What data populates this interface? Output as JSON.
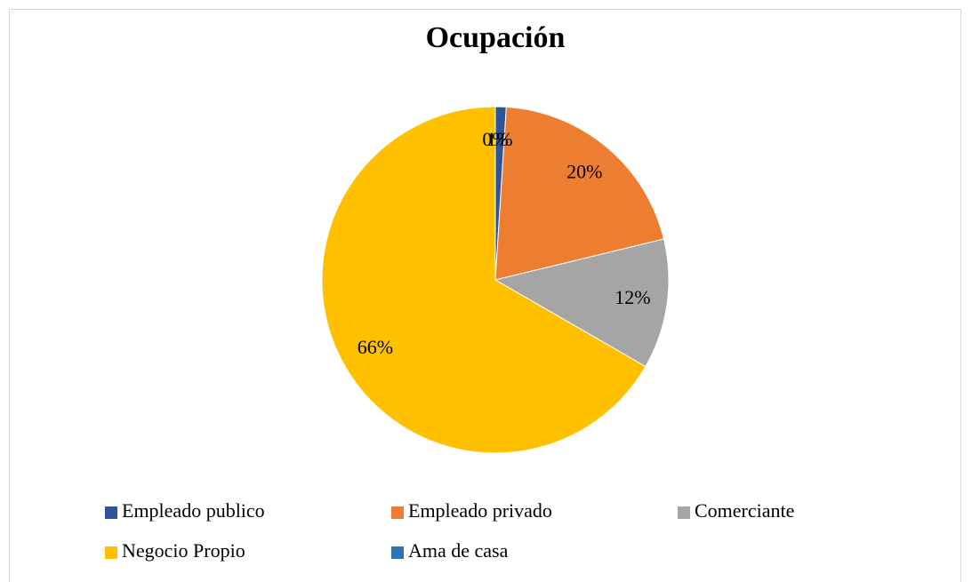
{
  "chart_data": {
    "type": "pie",
    "title": "Ocupación",
    "categories": [
      "Empleado publico",
      "Empleado privado",
      "Comerciante",
      "Negocio Propio",
      "Ama de casa"
    ],
    "values": [
      1,
      20,
      12,
      66,
      0
    ],
    "value_labels": [
      "1%",
      "20%",
      "12%",
      "66%",
      "0%"
    ],
    "colors": [
      "#2f5597",
      "#ed7d31",
      "#a5a5a5",
      "#ffc000",
      "#2e75b6"
    ],
    "legend": "bottom"
  }
}
